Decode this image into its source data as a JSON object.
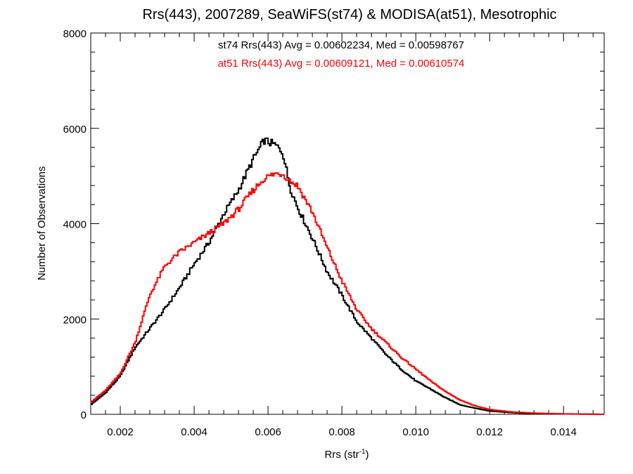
{
  "chart_data": {
    "type": "line",
    "style": "step-histogram",
    "title": "Rrs(443), 2007289, SeaWiFS(st74) & MODISA(at51), Mesotrophic",
    "xlabel_main": "Rrs (str",
    "xlabel_sup": "-1",
    "xlabel_close": ")",
    "ylabel": "Number of Observations",
    "xlim": [
      0.0012,
      0.0151
    ],
    "ylim": [
      0,
      8000
    ],
    "x_ticks": [
      0.002,
      0.004,
      0.006,
      0.008,
      0.01,
      0.012,
      0.014
    ],
    "x_tick_labels": [
      "0.002",
      "0.004",
      "0.006",
      "0.008",
      "0.010",
      "0.012",
      "0.014"
    ],
    "y_ticks": [
      0,
      2000,
      4000,
      6000,
      8000
    ],
    "y_tick_labels": [
      "0",
      "2000",
      "4000",
      "6000",
      "8000"
    ],
    "annotations": [
      {
        "text": "st74 Rrs(443) Avg = 0.00602234, Med = 0.00598767",
        "color": "#000000"
      },
      {
        "text": "at51 Rrs(443) Avg = 0.00609121, Med = 0.00610574",
        "color": "#ff0000"
      }
    ],
    "series": [
      {
        "color": "#000000",
        "x": [
          0.0012,
          0.0016,
          0.002,
          0.0024,
          0.0028,
          0.0032,
          0.0036,
          0.004,
          0.0044,
          0.0048,
          0.0052,
          0.0056,
          0.0059,
          0.0062,
          0.0064,
          0.0066,
          0.0068,
          0.0072,
          0.0076,
          0.008,
          0.0084,
          0.0088,
          0.0092,
          0.0096,
          0.01,
          0.0104,
          0.0108,
          0.0112,
          0.0116,
          0.012,
          0.0126,
          0.0132,
          0.014,
          0.0151
        ],
        "y": [
          200,
          450,
          800,
          1400,
          1800,
          2200,
          2650,
          3150,
          3600,
          4200,
          4700,
          5350,
          5750,
          5650,
          5500,
          4750,
          4350,
          3700,
          3000,
          2500,
          1950,
          1600,
          1250,
          950,
          700,
          530,
          350,
          200,
          130,
          70,
          35,
          15,
          8,
          0
        ]
      },
      {
        "color": "#ff0000",
        "x": [
          0.0012,
          0.0016,
          0.002,
          0.0024,
          0.0028,
          0.0032,
          0.0036,
          0.004,
          0.0044,
          0.0048,
          0.0052,
          0.0056,
          0.0059,
          0.0062,
          0.0064,
          0.0066,
          0.0068,
          0.0072,
          0.0076,
          0.008,
          0.0084,
          0.0088,
          0.0092,
          0.0096,
          0.01,
          0.0104,
          0.0108,
          0.0112,
          0.0116,
          0.012,
          0.0126,
          0.0132,
          0.014,
          0.0151
        ],
        "y": [
          250,
          500,
          850,
          1500,
          2500,
          3100,
          3400,
          3600,
          3800,
          4000,
          4300,
          4700,
          4950,
          5050,
          5050,
          4900,
          4800,
          4250,
          3500,
          2800,
          2200,
          1800,
          1500,
          1200,
          950,
          700,
          480,
          300,
          180,
          100,
          50,
          25,
          10,
          0
        ]
      }
    ]
  }
}
